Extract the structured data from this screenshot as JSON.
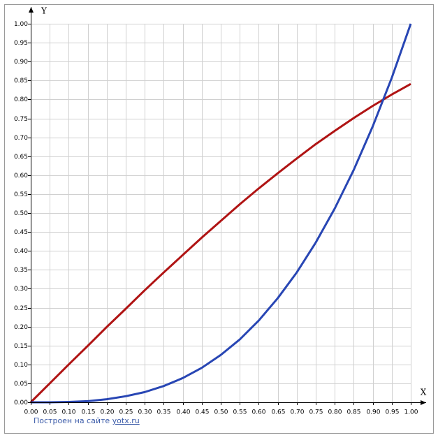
{
  "chart_data": {
    "type": "line",
    "x_label": "X",
    "y_label": "Y",
    "x": [
      0,
      0.05,
      0.1,
      0.15,
      0.2,
      0.25,
      0.3,
      0.35,
      0.4,
      0.45,
      0.5,
      0.55,
      0.6,
      0.65,
      0.7,
      0.75,
      0.8,
      0.85,
      0.9,
      0.95,
      1
    ],
    "series": [
      {
        "color": "#b01414",
        "values": [
          0,
          0.05,
          0.1,
          0.149,
          0.199,
          0.247,
          0.296,
          0.343,
          0.389,
          0.435,
          0.479,
          0.523,
          0.565,
          0.605,
          0.644,
          0.682,
          0.717,
          0.751,
          0.783,
          0.813,
          0.841
        ]
      },
      {
        "color": "#2846b4",
        "values": [
          0,
          0,
          0.001,
          0.003,
          0.008,
          0.016,
          0.027,
          0.043,
          0.064,
          0.091,
          0.125,
          0.166,
          0.216,
          0.275,
          0.343,
          0.422,
          0.512,
          0.614,
          0.729,
          0.857,
          1
        ]
      }
    ],
    "xlim": [
      0,
      1
    ],
    "ylim": [
      0,
      1
    ],
    "xticks": [
      {
        "value": 0,
        "label": "0.00"
      },
      {
        "value": 0.05,
        "label": "0.05"
      },
      {
        "value": 0.1,
        "label": "0.10"
      },
      {
        "value": 0.15,
        "label": "0.15"
      },
      {
        "value": 0.2,
        "label": "0.20"
      },
      {
        "value": 0.25,
        "label": "0.25"
      },
      {
        "value": 0.3,
        "label": "0.30"
      },
      {
        "value": 0.35,
        "label": "0.35"
      },
      {
        "value": 0.4,
        "label": "0.40"
      },
      {
        "value": 0.45,
        "label": "0.45"
      },
      {
        "value": 0.5,
        "label": "0.50"
      },
      {
        "value": 0.55,
        "label": "0.55"
      },
      {
        "value": 0.6,
        "label": "0.60"
      },
      {
        "value": 0.65,
        "label": "0.65"
      },
      {
        "value": 0.7,
        "label": "0.70"
      },
      {
        "value": 0.75,
        "label": "0.75"
      },
      {
        "value": 0.8,
        "label": "0.80"
      },
      {
        "value": 0.85,
        "label": "0.85"
      },
      {
        "value": 0.9,
        "label": "0.90"
      },
      {
        "value": 0.95,
        "label": "0.95"
      },
      {
        "value": 1,
        "label": "1.00"
      }
    ],
    "yticks": [
      {
        "value": 0,
        "label": "0.00"
      },
      {
        "value": 0.05,
        "label": "0.05"
      },
      {
        "value": 0.1,
        "label": "0.10"
      },
      {
        "value": 0.15,
        "label": "0.15"
      },
      {
        "value": 0.2,
        "label": "0.20"
      },
      {
        "value": 0.25,
        "label": "0.25"
      },
      {
        "value": 0.3,
        "label": "0.30"
      },
      {
        "value": 0.35,
        "label": "0.35"
      },
      {
        "value": 0.4,
        "label": "0.40"
      },
      {
        "value": 0.45,
        "label": "0.45"
      },
      {
        "value": 0.5,
        "label": "0.50"
      },
      {
        "value": 0.55,
        "label": "0.55"
      },
      {
        "value": 0.6,
        "label": "0.60"
      },
      {
        "value": 0.65,
        "label": "0.65"
      },
      {
        "value": 0.7,
        "label": "0.70"
      },
      {
        "value": 0.75,
        "label": "0.75"
      },
      {
        "value": 0.8,
        "label": "0.80"
      },
      {
        "value": 0.85,
        "label": "0.85"
      },
      {
        "value": 0.9,
        "label": "0.90"
      },
      {
        "value": 0.95,
        "label": "0.95"
      },
      {
        "value": 1,
        "label": "1.00"
      }
    ],
    "grid": true,
    "footer_text": "Построен на сайте",
    "footer_link": "yotx.ru"
  }
}
